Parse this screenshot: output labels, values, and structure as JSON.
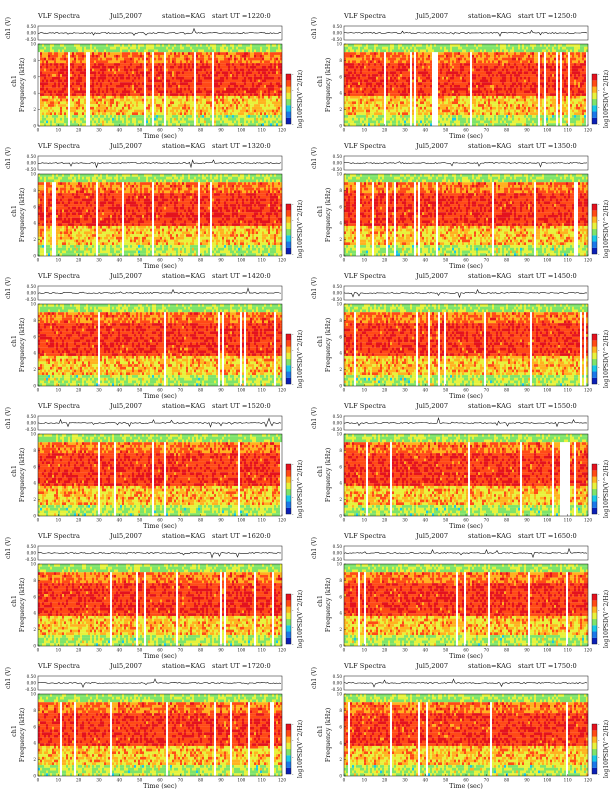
{
  "colors": {
    "background": "#ffffff",
    "colormap": [
      "#0b1fb6",
      "#1c78e8",
      "#18c8e8",
      "#7ee36a",
      "#e7f23b",
      "#ffb21f",
      "#ff4a16",
      "#e4121d"
    ],
    "signal": "#111111"
  },
  "panels": [
    {
      "id": "p1",
      "header": {
        "title": "VLF Spectra",
        "date": "Jul5,2007",
        "station": "station=KAG",
        "start": "start UT =1220:0"
      },
      "chart_data": {
        "type": "heatmap",
        "title": "VLF Spectra",
        "xlabel": "Time (sec)",
        "ylabel": "Frequency (kHz)",
        "channel_label": "ch1",
        "signal_label": "ch1 (V)",
        "signal_ticks": [
          "0.50",
          "0.00",
          "-0.50"
        ],
        "xticks": [
          "0",
          "10",
          "20",
          "30",
          "40",
          "50",
          "60",
          "70",
          "80",
          "90",
          "100",
          "110",
          "120"
        ],
        "yticks": [
          "0",
          "2",
          "4",
          "6",
          "8",
          "10"
        ],
        "xlim": [
          0,
          120
        ],
        "ylim": [
          0,
          10
        ],
        "colorbar_label": "log10PSD(V^2/Hz)",
        "colorbar_ticks": [
          "-",
          "-",
          "-",
          "-"
        ]
      }
    },
    {
      "id": "p2",
      "header": {
        "title": "VLF Spectra",
        "date": "Jul5,2007",
        "station": "station=KAG",
        "start": "start UT =1250:0"
      },
      "chart_data": {
        "type": "heatmap",
        "title": "VLF Spectra",
        "xlabel": "Time (sec)",
        "ylabel": "Frequency (kHz)",
        "channel_label": "ch1",
        "signal_label": "ch1 (V)",
        "signal_ticks": [
          "0.50",
          "0.00",
          "-0.50"
        ],
        "xticks": [
          "0",
          "10",
          "20",
          "30",
          "40",
          "50",
          "60",
          "70",
          "80",
          "90",
          "100",
          "110",
          "120"
        ],
        "yticks": [
          "0",
          "2",
          "4",
          "6",
          "8",
          "10"
        ],
        "xlim": [
          0,
          120
        ],
        "ylim": [
          0,
          10
        ],
        "colorbar_label": "log10PSD(V^2/Hz)",
        "colorbar_ticks": [
          "-",
          "-",
          "-",
          "-"
        ]
      }
    },
    {
      "id": "p3",
      "header": {
        "title": "VLF Spectra",
        "date": "Jul5,2007",
        "station": "station=KAG",
        "start": "start UT =1320:0"
      },
      "chart_data": {
        "type": "heatmap",
        "title": "VLF Spectra",
        "xlabel": "Time (sec)",
        "ylabel": "Frequency (kHz)",
        "channel_label": "ch1",
        "signal_label": "ch1 (V)",
        "signal_ticks": [
          "0.50",
          "0.00",
          "-0.50"
        ],
        "xticks": [
          "0",
          "10",
          "20",
          "30",
          "40",
          "50",
          "60",
          "70",
          "80",
          "90",
          "100",
          "110",
          "120"
        ],
        "yticks": [
          "0",
          "2",
          "4",
          "6",
          "8",
          "10"
        ],
        "xlim": [
          0,
          120
        ],
        "ylim": [
          0,
          10
        ],
        "colorbar_label": "log10PSD(V^2/Hz)",
        "colorbar_ticks": [
          "-",
          "-",
          "-",
          "-"
        ]
      }
    },
    {
      "id": "p4",
      "header": {
        "title": "VLF Spectra",
        "date": "Jul5,2007",
        "station": "station=KAG",
        "start": "start UT =1350:0"
      },
      "chart_data": {
        "type": "heatmap",
        "title": "VLF Spectra",
        "xlabel": "Time (sec)",
        "ylabel": "Frequency (kHz)",
        "channel_label": "ch1",
        "signal_label": "ch1 (V)",
        "signal_ticks": [
          "0.50",
          "0.00",
          "-0.50"
        ],
        "xticks": [
          "0",
          "10",
          "20",
          "30",
          "40",
          "50",
          "60",
          "70",
          "80",
          "90",
          "100",
          "110",
          "120"
        ],
        "yticks": [
          "0",
          "2",
          "4",
          "6",
          "8",
          "10"
        ],
        "xlim": [
          0,
          120
        ],
        "ylim": [
          0,
          10
        ],
        "colorbar_label": "log10PSD(V^2/Hz)",
        "colorbar_ticks": [
          "-",
          "-",
          "-",
          "-"
        ]
      }
    },
    {
      "id": "p5",
      "header": {
        "title": "VLF Spectra",
        "date": "Jul5,2007",
        "station": "station=KAG",
        "start": "start UT =1420:0"
      },
      "chart_data": {
        "type": "heatmap",
        "title": "VLF Spectra",
        "xlabel": "Time (sec)",
        "ylabel": "Frequency (kHz)",
        "channel_label": "ch1",
        "signal_label": "ch1 (V)",
        "signal_ticks": [
          "0.50",
          "0.00",
          "-0.50"
        ],
        "xticks": [
          "0",
          "10",
          "20",
          "30",
          "40",
          "50",
          "60",
          "70",
          "80",
          "90",
          "100",
          "110",
          "120"
        ],
        "yticks": [
          "0",
          "2",
          "4",
          "6",
          "8",
          "10"
        ],
        "xlim": [
          0,
          120
        ],
        "ylim": [
          0,
          10
        ],
        "colorbar_label": "log10PSD(V^2/Hz)",
        "colorbar_ticks": [
          "-",
          "-",
          "-",
          "-"
        ]
      }
    },
    {
      "id": "p6",
      "header": {
        "title": "VLF Spectra",
        "date": "Jul5,2007",
        "station": "station=KAG",
        "start": "start UT =1450:0"
      },
      "chart_data": {
        "type": "heatmap",
        "title": "VLF Spectra",
        "xlabel": "Time (sec)",
        "ylabel": "Frequency (kHz)",
        "channel_label": "ch1",
        "signal_label": "ch1 (V)",
        "signal_ticks": [
          "0.50",
          "0.00",
          "-0.50"
        ],
        "xticks": [
          "0",
          "10",
          "20",
          "30",
          "40",
          "50",
          "60",
          "70",
          "80",
          "90",
          "100",
          "110",
          "120"
        ],
        "yticks": [
          "0",
          "2",
          "4",
          "6",
          "8",
          "10"
        ],
        "xlim": [
          0,
          120
        ],
        "ylim": [
          0,
          10
        ],
        "colorbar_label": "log10PSD(V^2/Hz)",
        "colorbar_ticks": [
          "-",
          "-",
          "-",
          "-"
        ]
      }
    },
    {
      "id": "p7",
      "header": {
        "title": "VLF Spectra",
        "date": "Jul5,2007",
        "station": "station=KAG",
        "start": "start UT =1520:0"
      },
      "chart_data": {
        "type": "heatmap",
        "title": "VLF Spectra",
        "xlabel": "Time (sec)",
        "ylabel": "Frequency (kHz)",
        "channel_label": "ch1",
        "signal_label": "ch1 (V)",
        "signal_ticks": [
          "0.50",
          "0.00",
          "-0.50"
        ],
        "xticks": [
          "0",
          "10",
          "20",
          "30",
          "40",
          "50",
          "60",
          "70",
          "80",
          "90",
          "100",
          "110",
          "120"
        ],
        "yticks": [
          "0",
          "2",
          "4",
          "6",
          "8",
          "10"
        ],
        "xlim": [
          0,
          120
        ],
        "ylim": [
          0,
          10
        ],
        "colorbar_label": "log10PSD(V^2/Hz)",
        "colorbar_ticks": [
          "-",
          "-",
          "-",
          "-"
        ]
      }
    },
    {
      "id": "p8",
      "header": {
        "title": "VLF Spectra",
        "date": "Jul5,2007",
        "station": "station=KAG",
        "start": "start UT =1550:0"
      },
      "chart_data": {
        "type": "heatmap",
        "title": "VLF Spectra",
        "xlabel": "Time (sec)",
        "ylabel": "Frequency (kHz)",
        "channel_label": "ch1",
        "signal_label": "ch1 (V)",
        "signal_ticks": [
          "0.50",
          "0.00",
          "-0.50"
        ],
        "xticks": [
          "0",
          "10",
          "20",
          "30",
          "40",
          "50",
          "60",
          "70",
          "80",
          "90",
          "100",
          "110",
          "120"
        ],
        "yticks": [
          "0",
          "2",
          "4",
          "6",
          "8",
          "10"
        ],
        "xlim": [
          0,
          120
        ],
        "ylim": [
          0,
          10
        ],
        "colorbar_label": "log10PSD(V^2/Hz)",
        "colorbar_ticks": [
          "-",
          "-",
          "-",
          "-"
        ]
      }
    },
    {
      "id": "p9",
      "header": {
        "title": "VLF Spectra",
        "date": "Jul5,2007",
        "station": "station=KAG",
        "start": "start UT =1620:0"
      },
      "chart_data": {
        "type": "heatmap",
        "title": "VLF Spectra",
        "xlabel": "Time (sec)",
        "ylabel": "Frequency (kHz)",
        "channel_label": "ch1",
        "signal_label": "ch1 (V)",
        "signal_ticks": [
          "0.50",
          "0.00",
          "-0.50"
        ],
        "xticks": [
          "0",
          "10",
          "20",
          "30",
          "40",
          "50",
          "60",
          "70",
          "80",
          "90",
          "100",
          "110",
          "120"
        ],
        "yticks": [
          "0",
          "2",
          "4",
          "6",
          "8",
          "10"
        ],
        "xlim": [
          0,
          120
        ],
        "ylim": [
          0,
          10
        ],
        "colorbar_label": "log10PSD(V^2/Hz)",
        "colorbar_ticks": [
          "-",
          "-",
          "-",
          "-"
        ]
      }
    },
    {
      "id": "p10",
      "header": {
        "title": "VLF Spectra",
        "date": "Jul5,2007",
        "station": "station=KAG",
        "start": "start UT =1650:0"
      },
      "chart_data": {
        "type": "heatmap",
        "title": "VLF Spectra",
        "xlabel": "Time (sec)",
        "ylabel": "Frequency (kHz)",
        "channel_label": "ch1",
        "signal_label": "ch1 (V)",
        "signal_ticks": [
          "0.50",
          "0.00",
          "-0.50"
        ],
        "xticks": [
          "0",
          "10",
          "20",
          "30",
          "40",
          "50",
          "60",
          "70",
          "80",
          "90",
          "100",
          "110",
          "120"
        ],
        "yticks": [
          "0",
          "2",
          "4",
          "6",
          "8",
          "10"
        ],
        "xlim": [
          0,
          120
        ],
        "ylim": [
          0,
          10
        ],
        "colorbar_label": "log10PSD(V^2/Hz)",
        "colorbar_ticks": [
          "-",
          "-",
          "-",
          "-"
        ]
      }
    },
    {
      "id": "p11",
      "header": {
        "title": "VLF Spectra",
        "date": "Jul5,2007",
        "station": "station=KAG",
        "start": "start UT =1720:0"
      },
      "chart_data": {
        "type": "heatmap",
        "title": "VLF Spectra",
        "xlabel": "Time (sec)",
        "ylabel": "Frequency (kHz)",
        "channel_label": "ch1",
        "signal_label": "ch1 (V)",
        "signal_ticks": [
          "0.50",
          "0.00",
          "-0.50"
        ],
        "xticks": [
          "0",
          "10",
          "20",
          "30",
          "40",
          "50",
          "60",
          "70",
          "80",
          "90",
          "100",
          "110",
          "120"
        ],
        "yticks": [
          "0",
          "2",
          "4",
          "6",
          "8",
          "10"
        ],
        "xlim": [
          0,
          120
        ],
        "ylim": [
          0,
          10
        ],
        "colorbar_label": "log10PSD(V^2/Hz)",
        "colorbar_ticks": [
          "-",
          "-",
          "-",
          "-"
        ]
      }
    },
    {
      "id": "p12",
      "header": {
        "title": "VLF Spectra",
        "date": "Jul5,2007",
        "station": "station=KAG",
        "start": "start UT =1750:0"
      },
      "chart_data": {
        "type": "heatmap",
        "title": "VLF Spectra",
        "xlabel": "Time (sec)",
        "ylabel": "Frequency (kHz)",
        "channel_label": "ch1",
        "signal_label": "ch1 (V)",
        "signal_ticks": [
          "0.50",
          "0.00",
          "-0.50"
        ],
        "xticks": [
          "0",
          "10",
          "20",
          "30",
          "40",
          "50",
          "60",
          "70",
          "80",
          "90",
          "100",
          "110",
          "120"
        ],
        "yticks": [
          "0",
          "2",
          "4",
          "6",
          "8",
          "10"
        ],
        "xlim": [
          0,
          120
        ],
        "ylim": [
          0,
          10
        ],
        "colorbar_label": "log10PSD(V^2/Hz)",
        "colorbar_ticks": [
          "-",
          "-",
          "-",
          "-"
        ]
      }
    }
  ]
}
